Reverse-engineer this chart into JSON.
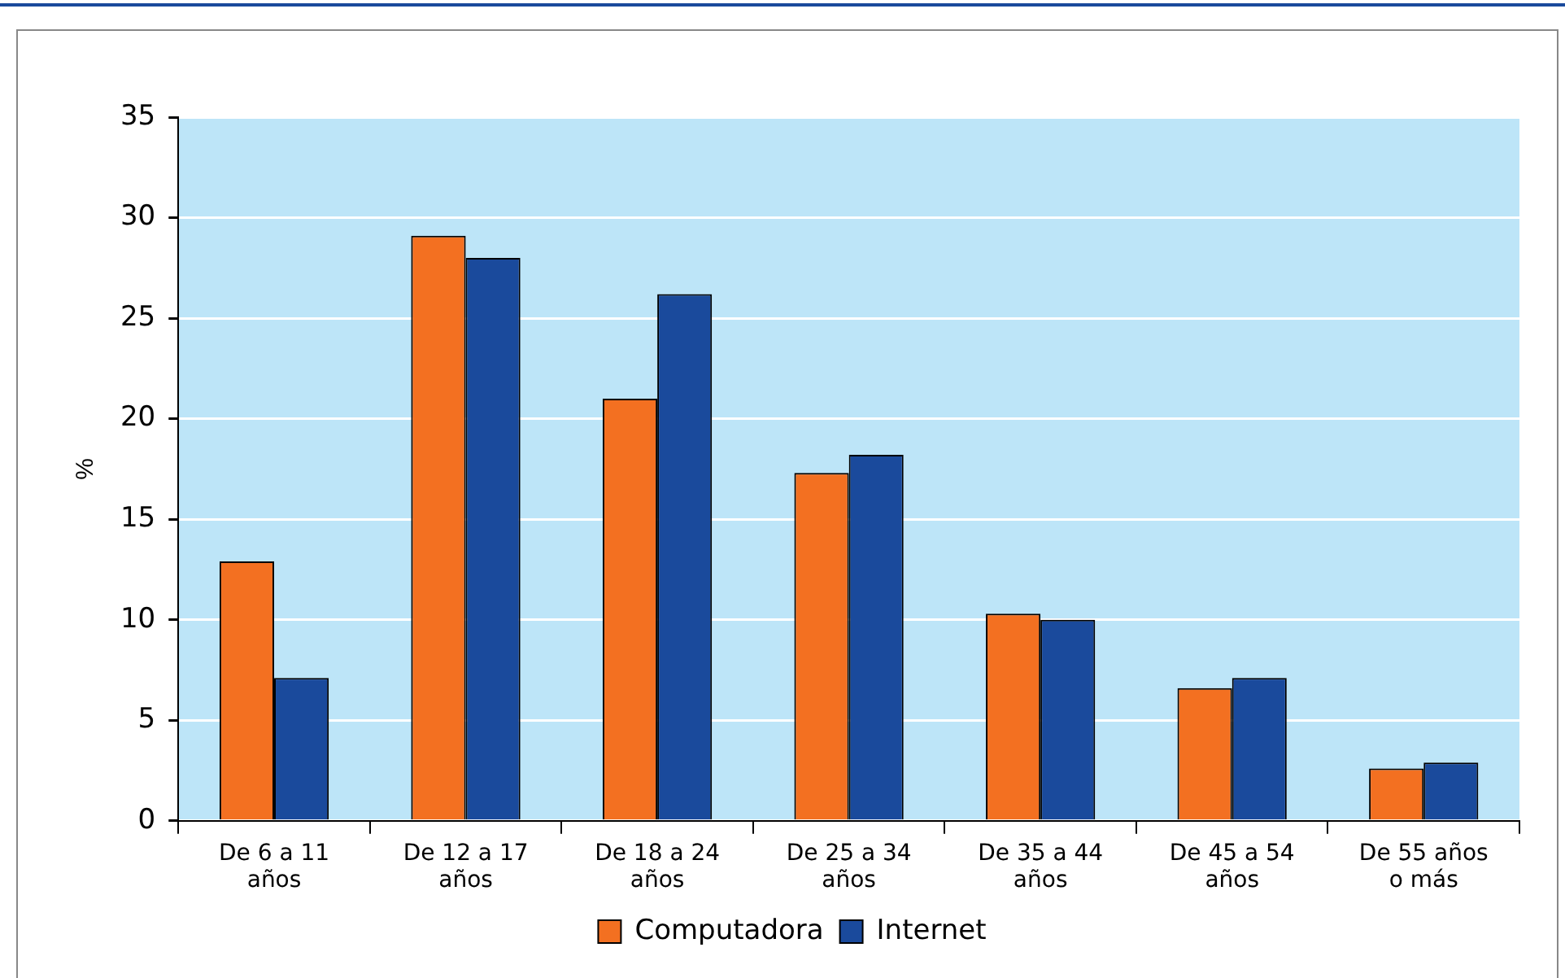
{
  "chart_data": {
    "type": "bar",
    "ylabel": "%",
    "categories": [
      "De 6 a 11\naños",
      "De 12 a 17\naños",
      "De 18 a 24\naños",
      "De 25 a 34\naños",
      "De 35 a 44\naños",
      "De 45 a 54\naños",
      "De 55 años\no más"
    ],
    "series": [
      {
        "name": "Computadora",
        "color": "#f37021",
        "values": [
          12.9,
          29.1,
          21.0,
          17.3,
          10.3,
          6.6,
          2.6
        ]
      },
      {
        "name": "Internet",
        "color": "#1a4a9c",
        "values": [
          7.1,
          28.0,
          26.2,
          18.2,
          10.0,
          7.1,
          2.9
        ]
      }
    ],
    "ylim": [
      0,
      35
    ],
    "yticks": [
      0,
      5,
      10,
      15,
      20,
      25,
      30,
      35
    ],
    "grid": "y",
    "legend": "bottom"
  }
}
